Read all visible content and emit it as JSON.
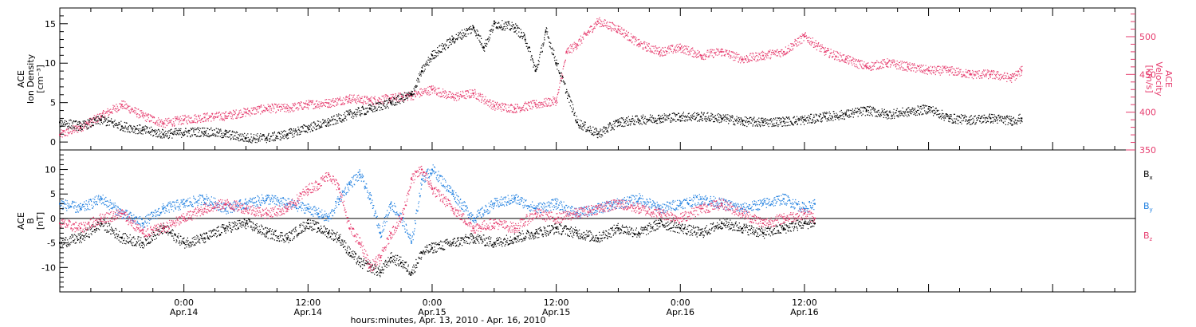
{
  "chart_data": [
    {
      "type": "scatter",
      "panel": "plasma",
      "ylabel": [
        "ACE",
        "Ion Density",
        "[cm⁻³]"
      ],
      "ylabel_right": [
        "ACE",
        "Velocity",
        "[km/s]"
      ],
      "ylim": [
        -1,
        17
      ],
      "yticks": [
        "0",
        "5",
        "10",
        "15"
      ],
      "ylim_right": [
        350,
        538
      ],
      "yticks_right": [
        "350",
        "400",
        "450",
        "500"
      ],
      "right_axis_color": "#e63c6e",
      "series": [
        {
          "color": "#000000",
          "axis": "left",
          "x": [
            0,
            2,
            4,
            6,
            8,
            10,
            12,
            14,
            16,
            18,
            20,
            22,
            24,
            26,
            28,
            30,
            32,
            34,
            35,
            36,
            38,
            40,
            41,
            42,
            44,
            45,
            46,
            47,
            48,
            50,
            52,
            54,
            56,
            58,
            60,
            62,
            64,
            66,
            68,
            70,
            72,
            74,
            76,
            78,
            80,
            82,
            84,
            86,
            88,
            90,
            92,
            93
          ],
          "y": [
            2.5,
            2.0,
            2.8,
            2.0,
            1.5,
            1.0,
            1.2,
            1.3,
            1.0,
            0.5,
            0.5,
            1.0,
            1.8,
            2.5,
            3.5,
            4.2,
            5.0,
            6.0,
            9.0,
            11.0,
            13.0,
            14.5,
            12.0,
            15.0,
            14.5,
            13.0,
            9.0,
            14.0,
            10.0,
            2.5,
            1.0,
            2.5,
            2.8,
            3.0,
            3.2,
            3.2,
            3.0,
            2.6,
            2.5,
            2.6,
            2.8,
            3.2,
            3.5,
            4.0,
            3.5,
            3.8,
            4.2,
            3.0,
            2.8,
            3.0,
            2.7,
            3.0
          ]
        },
        {
          "color": "#e63c6e",
          "axis": "right",
          "x": [
            0,
            2,
            4,
            6,
            8,
            10,
            12,
            14,
            16,
            18,
            20,
            22,
            24,
            26,
            28,
            30,
            32,
            34,
            36,
            38,
            40,
            42,
            44,
            46,
            48,
            49,
            50,
            52,
            54,
            56,
            58,
            60,
            62,
            64,
            66,
            68,
            70,
            72,
            74,
            76,
            78,
            80,
            82,
            84,
            86,
            88,
            90,
            92,
            93
          ],
          "y": [
            370,
            380,
            395,
            410,
            395,
            385,
            390,
            393,
            395,
            400,
            405,
            405,
            410,
            412,
            418,
            415,
            418,
            422,
            430,
            420,
            425,
            408,
            405,
            410,
            415,
            480,
            490,
            520,
            510,
            490,
            480,
            485,
            475,
            480,
            470,
            475,
            480,
            500,
            480,
            470,
            460,
            465,
            460,
            455,
            455,
            450,
            450,
            445,
            455
          ]
        }
      ]
    },
    {
      "type": "scatter",
      "panel": "magnetic",
      "ylabel": [
        "ACE",
        "B",
        "[nT]"
      ],
      "ylim": [
        -15,
        14
      ],
      "yticks": [
        "-10",
        "-5",
        "0",
        "5",
        "10"
      ],
      "zero_line": true,
      "xlim": [
        0,
        104
      ],
      "xticks": [
        {
          "x": 12,
          "top": "0:00",
          "bottom": "Apr.14"
        },
        {
          "x": 24,
          "top": "12:00",
          "bottom": "Apr.14"
        },
        {
          "x": 36,
          "top": "0:00",
          "bottom": "Apr.15"
        },
        {
          "x": 48,
          "top": "12:00",
          "bottom": "Apr.15"
        },
        {
          "x": 60,
          "top": "0:00",
          "bottom": "Apr.16"
        },
        {
          "x": 72,
          "top": "12:00",
          "bottom": "Apr.16"
        }
      ],
      "xlabel": "hours:minutes, Apr. 13, 2010 - Apr. 16, 2010",
      "legend": [
        {
          "label": "B",
          "sub": "x",
          "color": "#000000"
        },
        {
          "label": "B",
          "sub": "y",
          "color": "#1e7fe0"
        },
        {
          "label": "B",
          "sub": "z",
          "color": "#e63c6e"
        }
      ],
      "series": [
        {
          "color": "#000000",
          "x": [
            0,
            2,
            4,
            6,
            8,
            10,
            12,
            14,
            16,
            18,
            20,
            22,
            24,
            25,
            26,
            27,
            28,
            29,
            30,
            31,
            32,
            33,
            34,
            35,
            36,
            38,
            40,
            42,
            44,
            46,
            48,
            50,
            52,
            54,
            56,
            58,
            60,
            62,
            64,
            66,
            68,
            70,
            72,
            73
          ],
          "y": [
            -5,
            -4,
            -1,
            -4,
            -5,
            -2,
            -5,
            -4,
            -2,
            -1,
            -3,
            -4,
            -1,
            -2,
            -3,
            -4,
            -7,
            -9,
            -10,
            -11,
            -8,
            -9,
            -11,
            -7,
            -6,
            -5,
            -4,
            -5,
            -4,
            -3,
            -2,
            -3,
            -4,
            -2,
            -3,
            -1,
            -2,
            -3,
            -1,
            -2,
            -3,
            -2,
            -1,
            -1
          ]
        },
        {
          "color": "#1e7fe0",
          "x": [
            0,
            2,
            4,
            6,
            8,
            10,
            12,
            14,
            16,
            18,
            20,
            22,
            24,
            25,
            26,
            27,
            28,
            29,
            30,
            31,
            32,
            33,
            34,
            35,
            36,
            38,
            40,
            42,
            44,
            46,
            48,
            50,
            52,
            54,
            56,
            58,
            60,
            62,
            64,
            66,
            68,
            70,
            72,
            73
          ],
          "y": [
            3,
            2,
            4,
            1,
            -1,
            2,
            3,
            4,
            2,
            3,
            4,
            3,
            2,
            1,
            0,
            4,
            7,
            9,
            4,
            -3,
            3,
            0,
            -5,
            8,
            10,
            5,
            0,
            3,
            4,
            2,
            3,
            1,
            2,
            3,
            4,
            2,
            3,
            4,
            3,
            2,
            3,
            4,
            2,
            3
          ]
        },
        {
          "color": "#e63c6e",
          "x": [
            0,
            2,
            4,
            6,
            8,
            10,
            12,
            14,
            16,
            18,
            20,
            22,
            24,
            25,
            26,
            27,
            28,
            29,
            30,
            31,
            32,
            33,
            34,
            35,
            36,
            38,
            40,
            42,
            44,
            46,
            48,
            50,
            52,
            54,
            56,
            58,
            60,
            62,
            64,
            66,
            68,
            70,
            72,
            73
          ],
          "y": [
            -1,
            -2,
            0,
            1,
            -3,
            -2,
            0,
            2,
            3,
            2,
            1,
            2,
            6,
            7,
            9,
            6,
            -2,
            -5,
            -10,
            -8,
            -3,
            0,
            8,
            10,
            6,
            2,
            -2,
            -1,
            -2,
            1,
            0,
            1,
            2,
            3,
            2,
            1,
            0,
            2,
            3,
            1,
            -1,
            0,
            1,
            0
          ]
        }
      ]
    }
  ]
}
